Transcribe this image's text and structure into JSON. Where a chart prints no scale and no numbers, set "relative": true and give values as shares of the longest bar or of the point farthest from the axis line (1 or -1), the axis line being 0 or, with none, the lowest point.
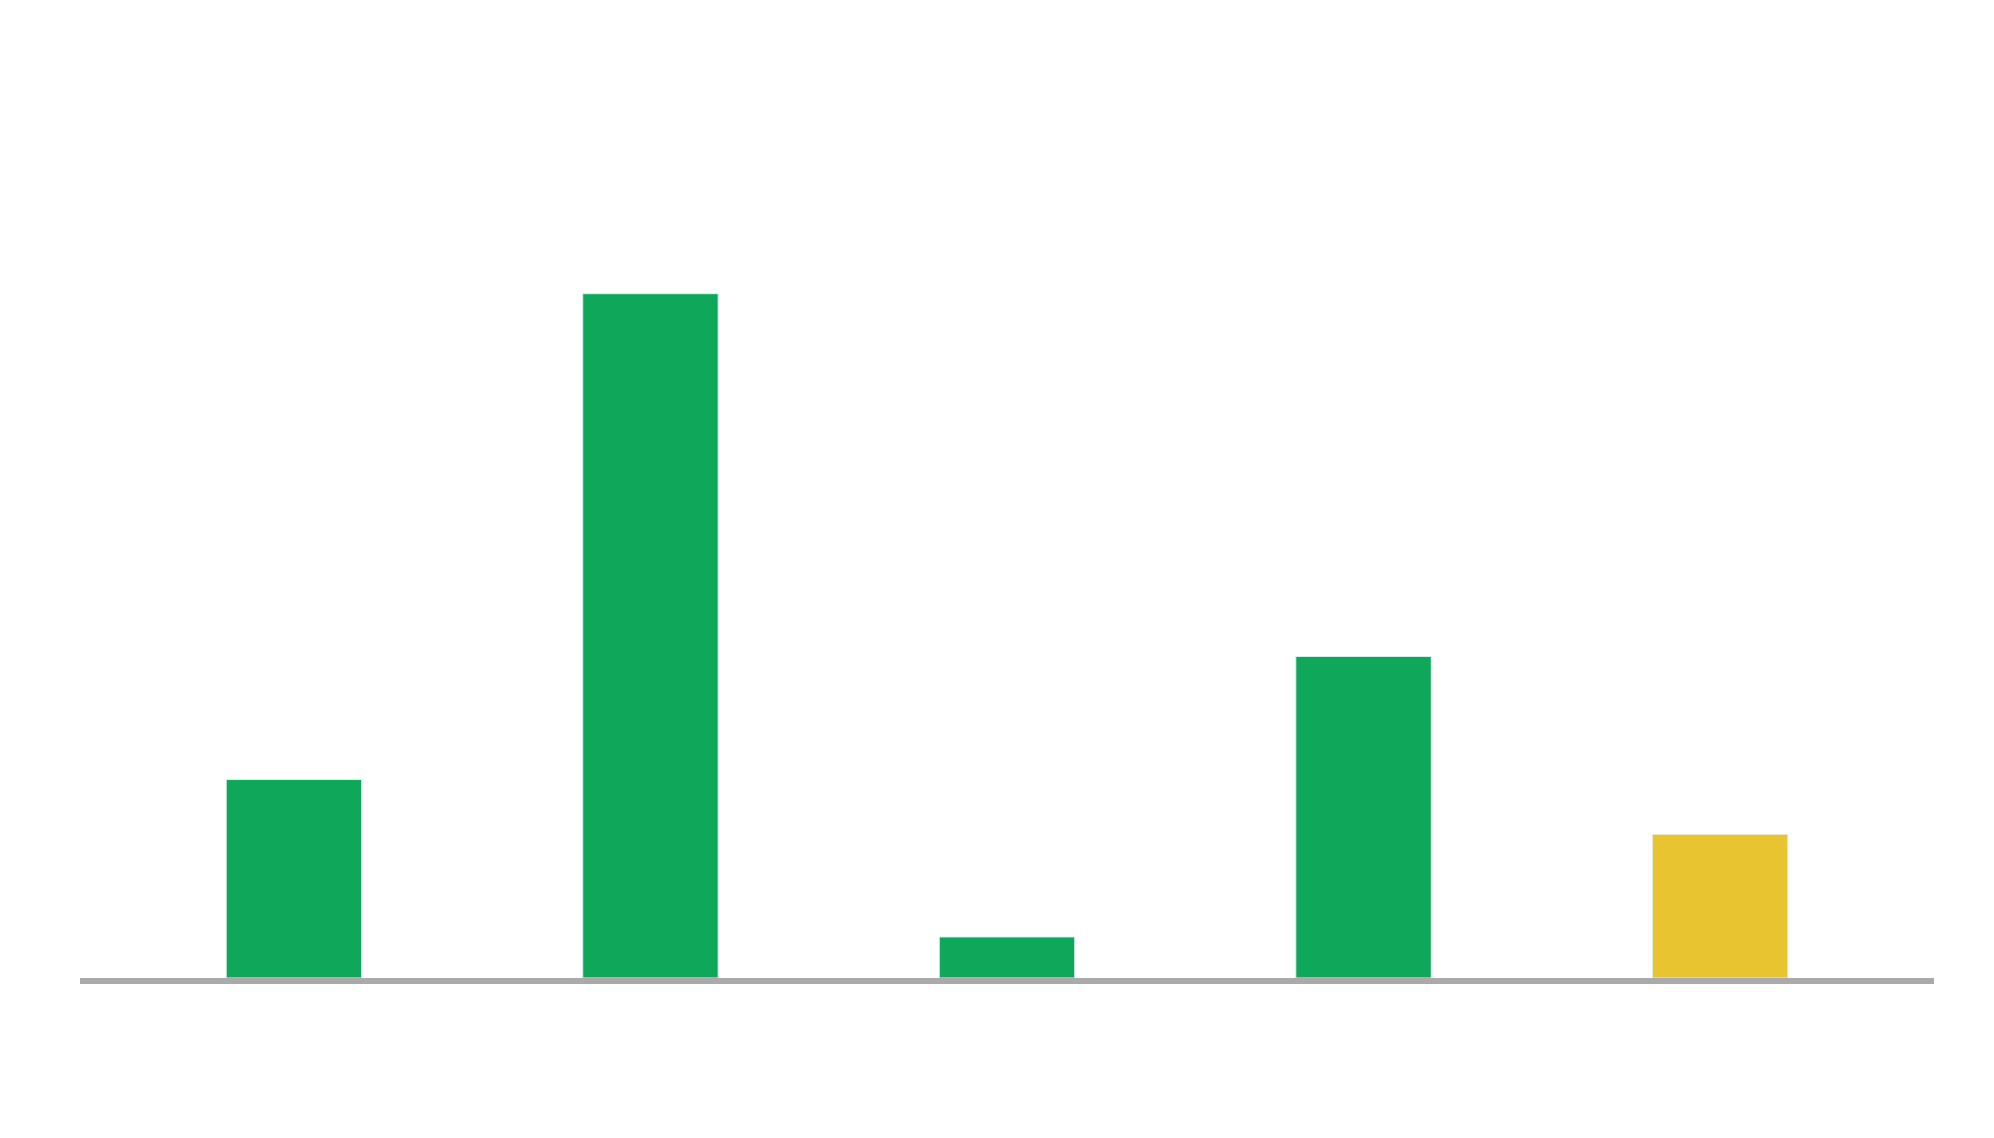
{
  "chart_data": {
    "type": "bar",
    "relative": true,
    "categories": [
      null,
      null,
      null,
      null,
      null
    ],
    "values": [
      0.29,
      1,
      0.06,
      0.47,
      0.21
    ],
    "colors": [
      "#0fa85a",
      "#0fa85a",
      "#0fa85a",
      "#0fa85a",
      "#e8c530"
    ]
  }
}
